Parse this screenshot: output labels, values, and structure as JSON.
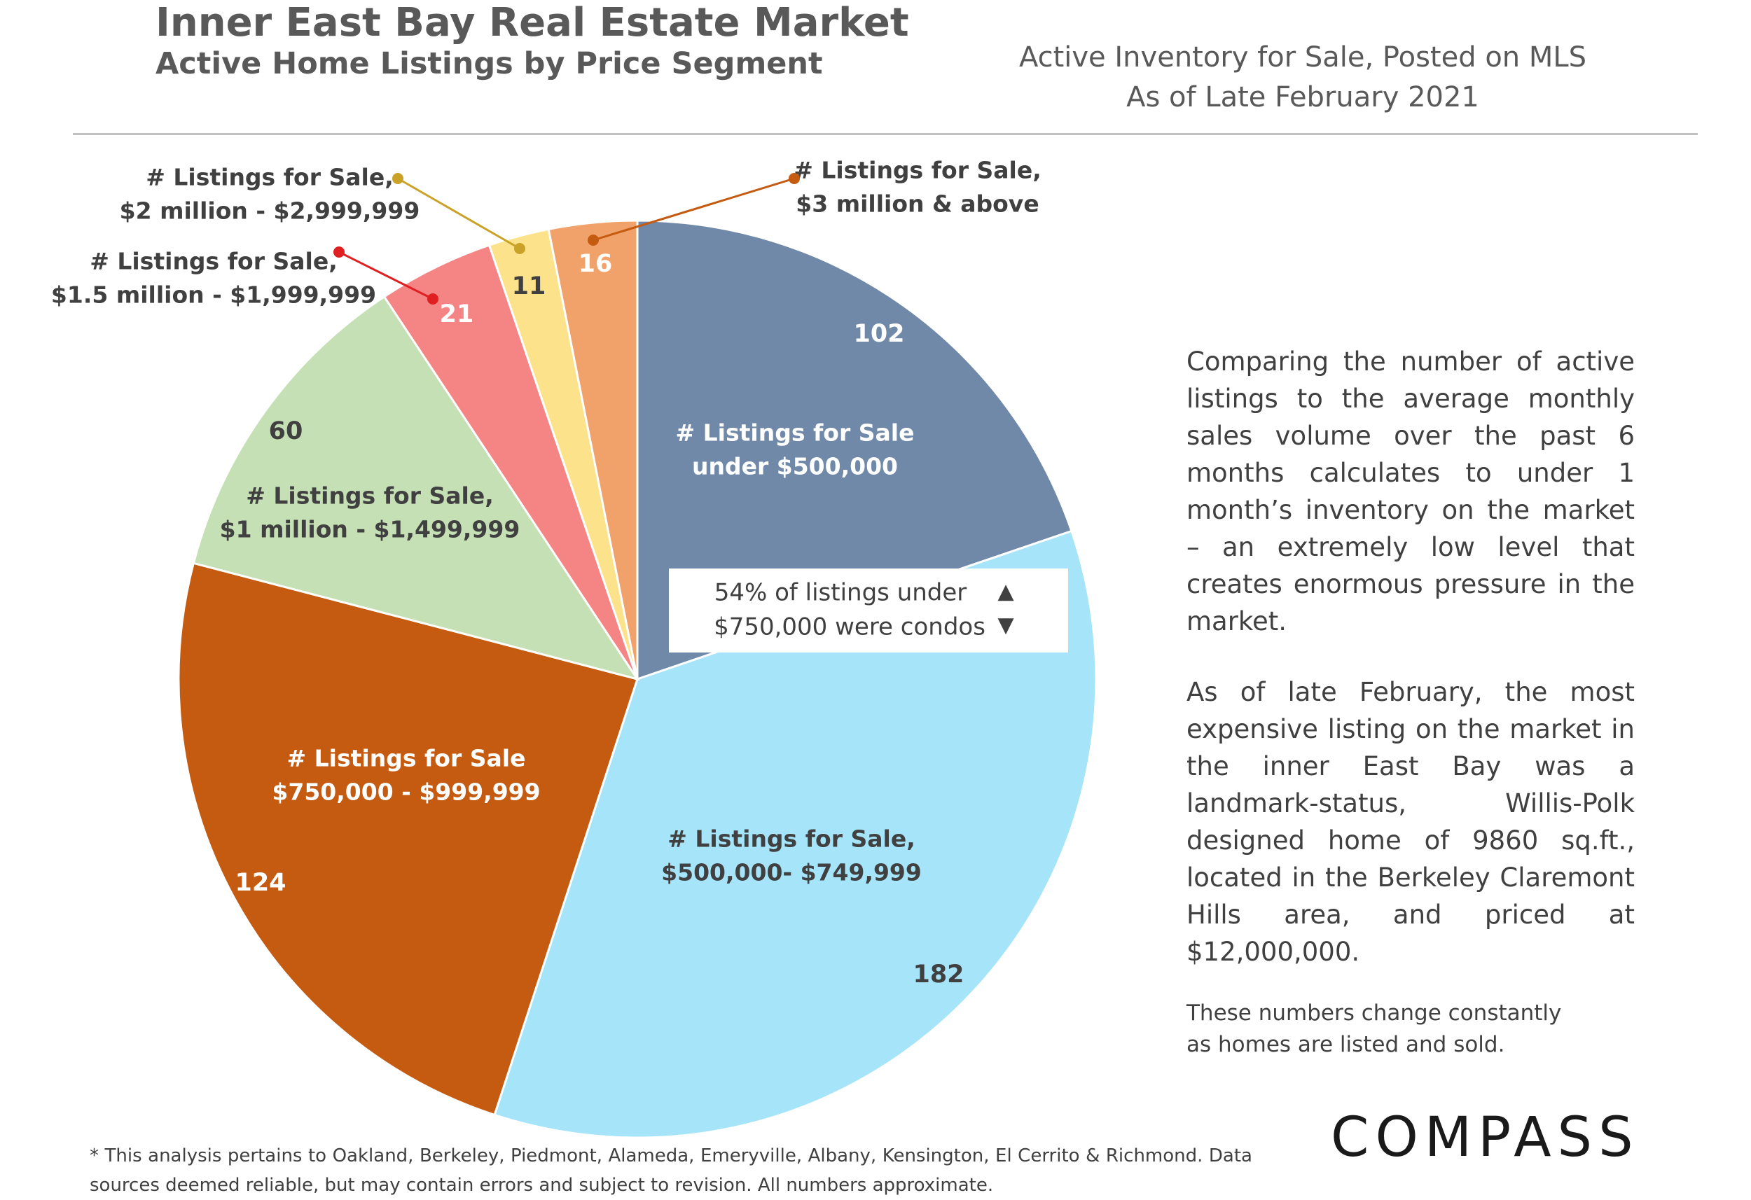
{
  "header": {
    "title": "Inner East Bay Real Estate Market",
    "subtitle": "Active Home Listings by Price Segment",
    "right_line1": "Active Inventory for Sale, Posted on MLS",
    "right_line2": "As of Late February 2021"
  },
  "chart_data": {
    "type": "pie",
    "title": "Active Home Listings by Price Segment",
    "slices": [
      {
        "label_lines": [
          "# Listings for Sale",
          "under $500,000"
        ],
        "value": 102,
        "color": "#7089A8"
      },
      {
        "label_lines": [
          "# Listings for Sale,",
          "$500,000- $749,999"
        ],
        "value": 182,
        "color": "#A6E4FA"
      },
      {
        "label_lines": [
          "# Listings for Sale",
          "$750,000 - $999,999"
        ],
        "value": 124,
        "color": "#C55A11"
      },
      {
        "label_lines": [
          "# Listings for Sale,",
          "$1 million - $1,499,999"
        ],
        "value": 60,
        "color": "#C5E0B4"
      },
      {
        "label_lines": [
          "# Listings for Sale,",
          "$1.5 million - $1,999,999"
        ],
        "value": 21,
        "color": "#F58585"
      },
      {
        "label_lines": [
          "# Listings for Sale,",
          "$2 million - $2,999,999"
        ],
        "value": 11,
        "color": "#FDE28C"
      },
      {
        "label_lines": [
          "# Listings for Sale,",
          "$3 million & above"
        ],
        "value": 16,
        "color": "#F0A26A"
      }
    ],
    "callout": {
      "line1": "54% of listings under",
      "line2": "$750,000 were condos",
      "arrow_up": "▲",
      "arrow_down": "▼"
    },
    "leader_colors": [
      "#E02020",
      "#C9A227",
      "#C55A11"
    ]
  },
  "side_text": {
    "p1": "Comparing the number of active listings to the average monthly sales volume over the past 6 months calculates to under 1 month’s inventory on the market – an extremely low level that creates enormous pressure in the market.",
    "p2": "As of late February, the most expensive listing on the market in the inner East Bay was a landmark-status, Willis-Polk designed home of 9860 sq.ft., located in the Berkeley Claremont Hills area, and priced at $12,000,000."
  },
  "note": {
    "line1": "These numbers change constantly",
    "line2": "as homes are listed and sold."
  },
  "brand": "COMPASS",
  "footnote": "* This analysis pertains to Oakland, Berkeley, Piedmont, Alameda, Emeryville, Albany, Kensington, El Cerrito & Richmond. Data sources deemed reliable, but may contain errors and subject to revision. All numbers approximate."
}
